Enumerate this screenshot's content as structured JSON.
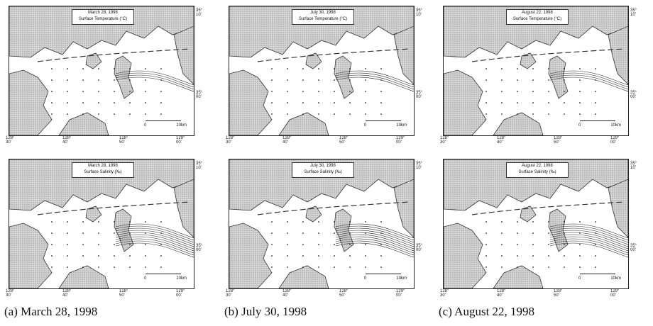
{
  "panels": [
    {
      "caption": "(a) March 28, 1998",
      "top_title": [
        "March 28, 1998",
        "Surface Temperature (°C)"
      ],
      "bottom_title": [
        "March 28, 1998",
        "Surface Salinity (‰)"
      ]
    },
    {
      "caption": "(b) July 30, 1998",
      "top_title": [
        "July 30, 1998",
        "Surface Temperature (°C)"
      ],
      "bottom_title": [
        "July 30, 1998",
        "Surface Salinity (‰)"
      ]
    },
    {
      "caption": "(c) August 22, 1998",
      "top_title": [
        "August 22, 1998",
        "Surface Temperature (°C)"
      ],
      "bottom_title": [
        "August 22, 1998",
        "Surface Salinity (‰)"
      ]
    }
  ],
  "axes": {
    "lon_ticks": [
      "128° 30'",
      "128° 40'",
      "128° 50'",
      "129° 00'"
    ],
    "lat_ticks": [
      "35° 10'",
      "35° 00'"
    ]
  },
  "scale_bar": {
    "start": "0",
    "end": "10km"
  },
  "colors": {
    "land": "#c9c9c9",
    "sea": "#ffffff",
    "contour": "#222222"
  }
}
